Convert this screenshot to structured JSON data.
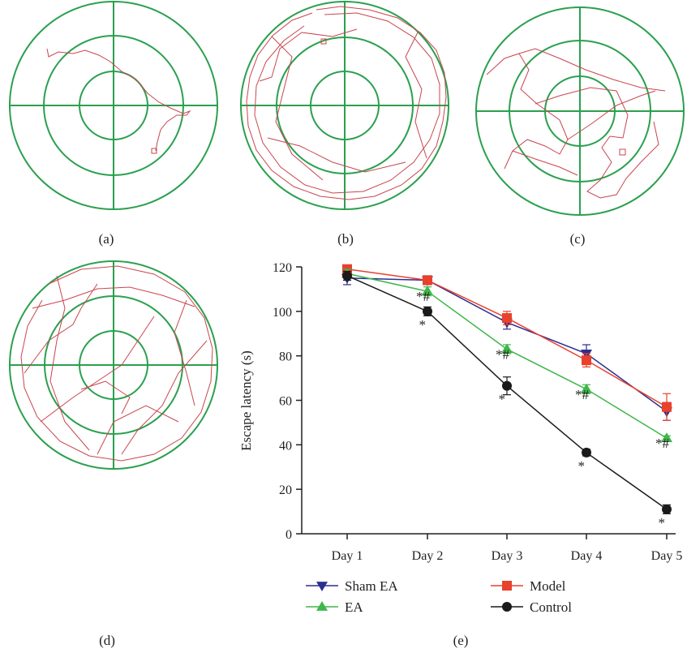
{
  "colors": {
    "maze_lines": "#2aa04e",
    "track": "#c8464e",
    "sham_ea": "#2b2f8f",
    "ea": "#3fb64a",
    "model": "#e8412c",
    "control": "#1a1a1a",
    "axis": "#231f20"
  },
  "panels": {
    "a": {
      "label": "(a)"
    },
    "b": {
      "label": "(b)"
    },
    "c": {
      "label": "(c)"
    },
    "d": {
      "label": "(d)"
    },
    "e": {
      "label": "(e)"
    }
  },
  "chart_data": {
    "type": "line",
    "xlabel": "",
    "ylabel": "Escape latency (s)",
    "ylim": [
      0,
      120
    ],
    "yticks": [
      "0",
      "20",
      "40",
      "60",
      "80",
      "100",
      "120"
    ],
    "categories": [
      "Day 1",
      "Day 2",
      "Day 3",
      "Day 4",
      "Day 5"
    ],
    "legend_position": "bottom",
    "grid": false,
    "series": [
      {
        "name": "Sham EA",
        "marker": "triangle-down",
        "color": "#2b2f8f",
        "values": [
          115,
          114,
          95,
          81,
          55
        ],
        "errors": [
          3,
          2,
          3,
          4,
          4
        ],
        "annotations": [
          "",
          "",
          "",
          "",
          ""
        ]
      },
      {
        "name": "Model",
        "marker": "square",
        "color": "#e8412c",
        "values": [
          119,
          114,
          97,
          78,
          57
        ],
        "errors": [
          1,
          1,
          3,
          3,
          6
        ],
        "annotations": [
          "",
          "",
          "",
          "",
          ""
        ]
      },
      {
        "name": "EA",
        "marker": "triangle-up",
        "color": "#3fb64a",
        "values": [
          117,
          109,
          83,
          65,
          43
        ],
        "errors": [
          2,
          2,
          2,
          2,
          1
        ],
        "annotations": [
          "",
          "*#",
          "*#",
          "*#",
          "*#"
        ]
      },
      {
        "name": "Control",
        "marker": "circle",
        "color": "#1a1a1a",
        "values": [
          116,
          100,
          66.5,
          36.5,
          11
        ],
        "errors": [
          2,
          2,
          4,
          1.5,
          2
        ],
        "annotations": [
          "",
          "*",
          "*",
          "*",
          "*"
        ]
      }
    ]
  }
}
